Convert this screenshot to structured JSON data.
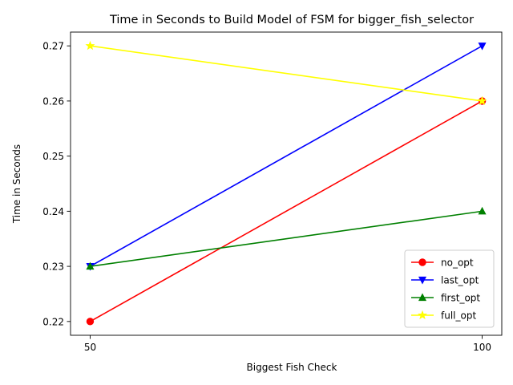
{
  "chart_data": {
    "type": "line",
    "title": "Time in Seconds to Build Model of FSM for bigger_fish_selector",
    "xlabel": "Biggest Fish Check",
    "ylabel": "Time in Seconds",
    "x": [
      50,
      100
    ],
    "x_tick_labels": [
      "50",
      "100"
    ],
    "xlim": [
      47.5,
      102.5
    ],
    "ylim": [
      0.2175,
      0.2725
    ],
    "y_ticks": [
      0.22,
      0.23,
      0.24,
      0.25,
      0.26,
      0.27
    ],
    "y_tick_labels": [
      "0.22",
      "0.23",
      "0.24",
      "0.25",
      "0.26",
      "0.27"
    ],
    "grid": false,
    "legend_position": "lower-right",
    "series": [
      {
        "name": "no_opt",
        "values": [
          0.22,
          0.26
        ],
        "color": "#ff0000",
        "marker": "circle"
      },
      {
        "name": "last_opt",
        "values": [
          0.23,
          0.27
        ],
        "color": "#0000ff",
        "marker": "triangle-down"
      },
      {
        "name": "first_opt",
        "values": [
          0.23,
          0.24
        ],
        "color": "#008000",
        "marker": "triangle-up"
      },
      {
        "name": "full_opt",
        "values": [
          0.27,
          0.26
        ],
        "color": "#ffff00",
        "marker": "star"
      }
    ]
  }
}
